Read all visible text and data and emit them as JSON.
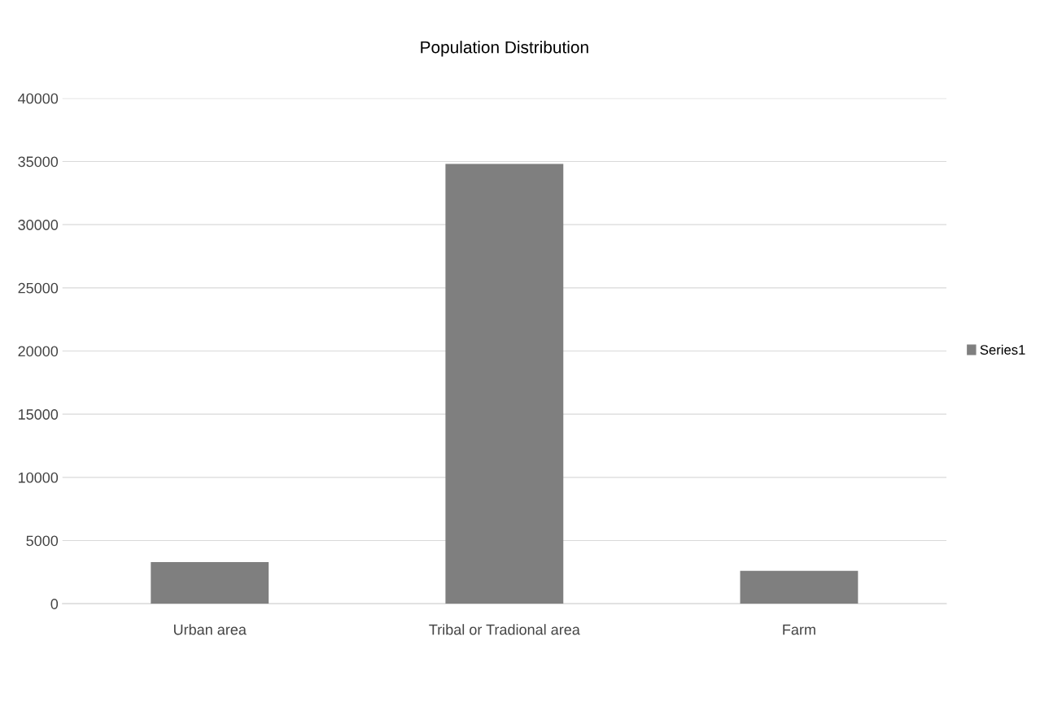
{
  "chart_data": {
    "type": "bar",
    "title": "Population Distribution",
    "categories": [
      "Urban area",
      "Tribal or Tradional area",
      "Farm"
    ],
    "series": [
      {
        "name": "Series1",
        "color": "#7f7f7f",
        "values": [
          3300,
          34800,
          2600
        ]
      }
    ],
    "ylim": [
      0,
      40000
    ],
    "yticks": [
      0,
      5000,
      10000,
      15000,
      20000,
      25000,
      30000,
      35000,
      40000
    ],
    "grid": "y",
    "legend": "right"
  }
}
